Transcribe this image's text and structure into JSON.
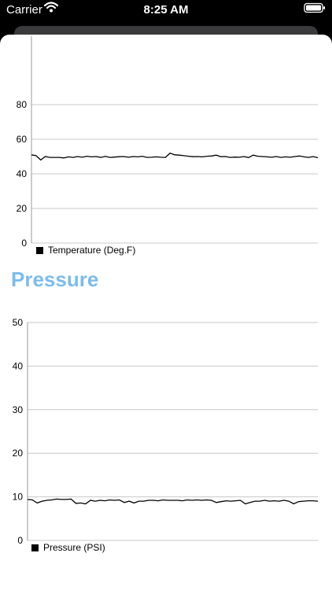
{
  "status_bar": {
    "carrier": "Carrier",
    "time": "8:25 AM",
    "icons": [
      "wifi-icon",
      "battery-icon"
    ]
  },
  "chart_data": [
    {
      "type": "line",
      "title": "",
      "xlabel": "",
      "ylabel": "",
      "ylim": [
        0,
        100
      ],
      "yticks": [
        0,
        20,
        40,
        60,
        80
      ],
      "grid": true,
      "legend_position": "bottom-left",
      "series": [
        {
          "name": "Temperature (Deg.F)",
          "color": "#000000",
          "values": [
            51,
            50.5,
            48,
            50,
            49.5,
            49.5,
            49.5,
            49.2,
            49.8,
            49.5,
            50,
            49.6,
            50.2,
            49.8,
            50,
            49.5,
            50.1,
            49.5,
            49.7,
            49.9,
            50,
            49.6,
            50,
            49.8,
            50.2,
            49.5,
            49.6,
            49.8,
            49.6,
            49.5,
            52,
            51,
            50.8,
            50.5,
            50.2,
            49.9,
            50,
            49.8,
            50.2,
            50.3,
            50.8,
            49.9,
            50,
            49.5,
            49.7,
            49.6,
            50,
            49.4,
            50.8,
            50.2,
            50,
            49.8,
            49.6,
            50,
            49.5,
            49.8,
            49.6,
            50,
            50.3,
            49.8,
            49.5,
            50,
            49.3
          ]
        }
      ]
    },
    {
      "type": "line",
      "title": "Pressure",
      "xlabel": "",
      "ylabel": "",
      "ylim": [
        0,
        50
      ],
      "yticks": [
        0,
        10,
        20,
        30,
        40,
        50
      ],
      "grid": true,
      "legend_position": "bottom-left",
      "series": [
        {
          "name": "Pressure (PSI)",
          "color": "#000000",
          "values": [
            9.4,
            9.3,
            8.6,
            9,
            9.2,
            9.3,
            9.5,
            9.4,
            9.4,
            9.5,
            8.5,
            8.6,
            8.4,
            9.2,
            9,
            9.2,
            9.1,
            9.3,
            9.2,
            9.3,
            8.7,
            9,
            8.6,
            9,
            9,
            9.2,
            9.2,
            9.1,
            9.3,
            9.2,
            9.2,
            9.2,
            9.1,
            9.3,
            9.2,
            9.3,
            9.2,
            9.3,
            9.2,
            8.7,
            8.9,
            9.1,
            9,
            9.1,
            9.2,
            8.4,
            8.7,
            9,
            9,
            9.2,
            9,
            9.1,
            9,
            9.2,
            9,
            8.4,
            8.9,
            9,
            9.1,
            9.1,
            9
          ]
        }
      ]
    }
  ]
}
